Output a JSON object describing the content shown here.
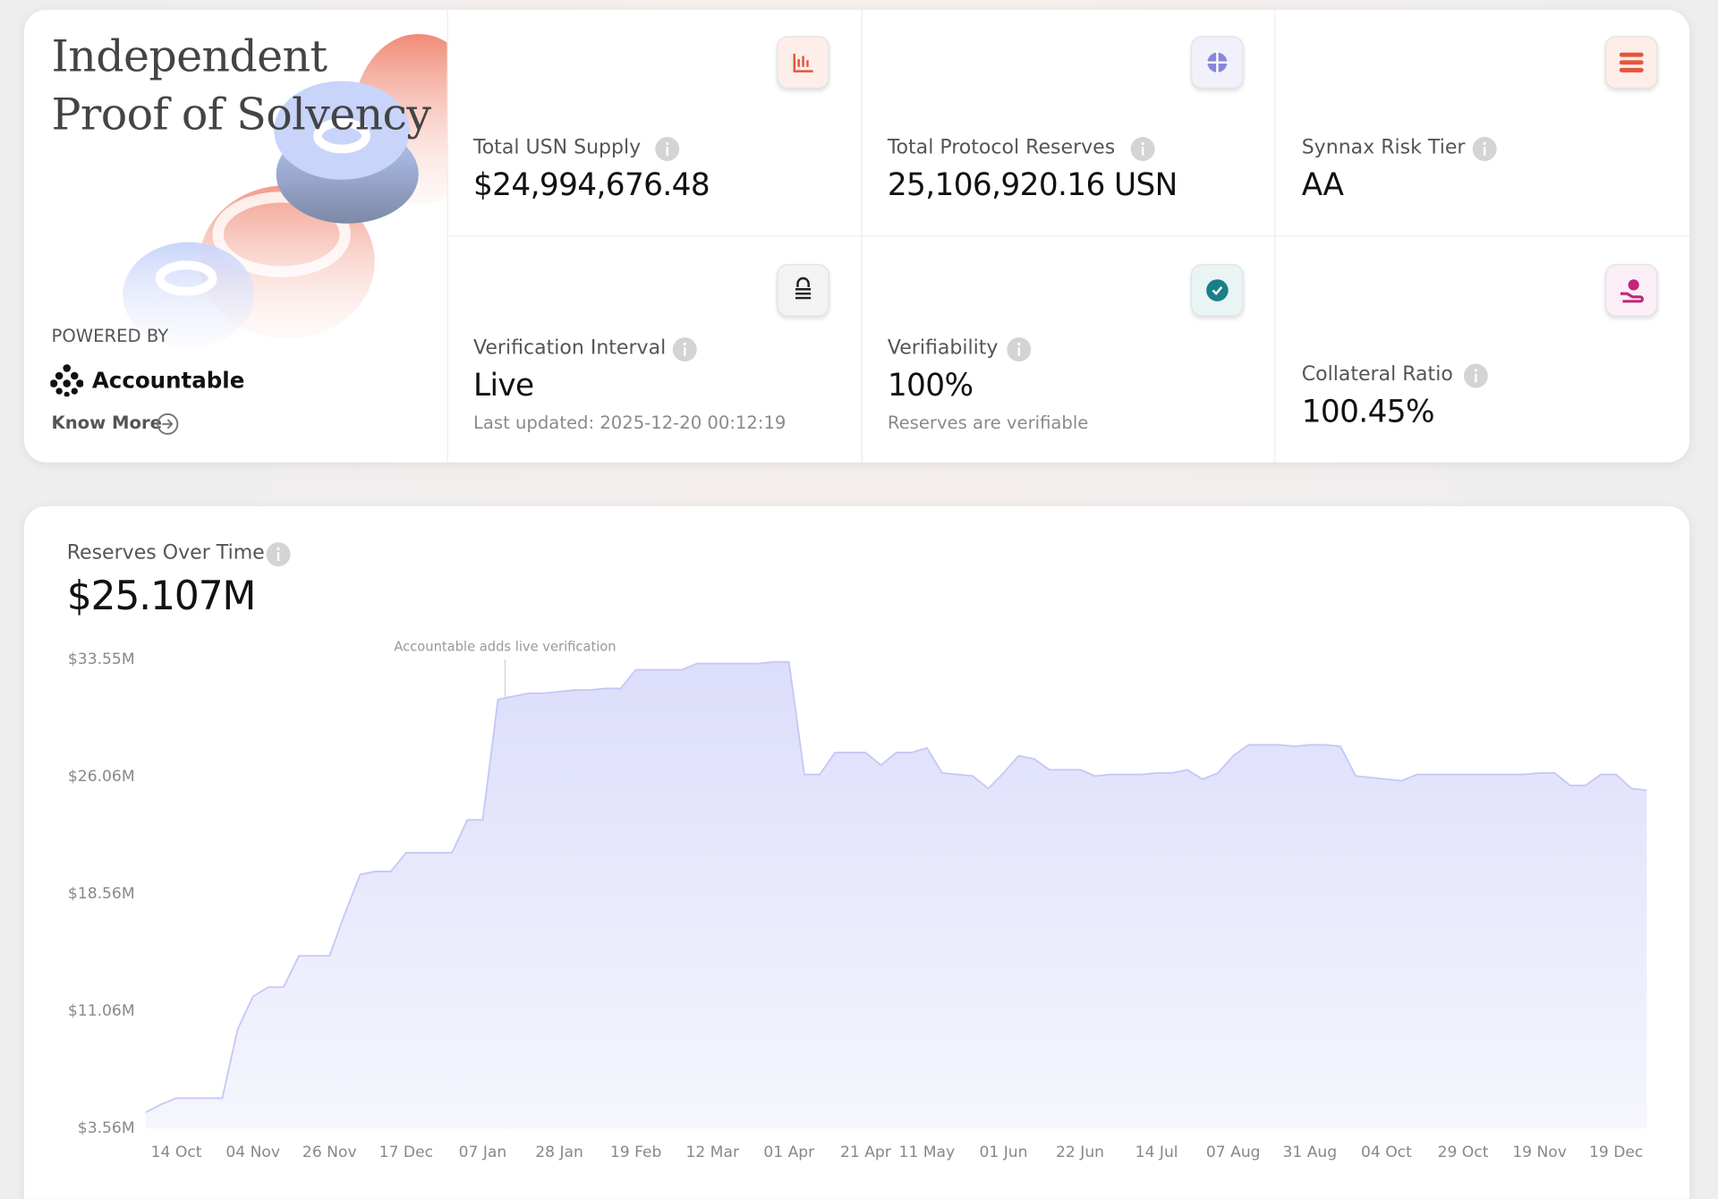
{
  "hero": {
    "title_lines": [
      "Independent",
      "Proof of Solvency"
    ],
    "powered_by": "POWERED BY",
    "brand": "Accountable",
    "link": "Know More"
  },
  "stats": [
    {
      "label": "Total USN Supply",
      "value": "$24,994,676.48"
    },
    {
      "label": "Total Protocol Reserves",
      "value": "25,106,920.16 USN"
    },
    {
      "label": "Synnax Risk Tier",
      "value": "AA"
    },
    {
      "label": "Verification Interval",
      "value": "Live",
      "note": "Last updated: 2025-12-20 00:12:19"
    },
    {
      "label": "Verifiability",
      "value": "100%",
      "note": "Reserves are verifiable"
    },
    {
      "label": "Collateral Ratio",
      "value": "100.45%"
    }
  ],
  "chart_data": {
    "type": "area",
    "title": "Reserves Over Time",
    "headline": "$25.107M",
    "annotation": "Accountable adds live verification",
    "color": "#c5c8f6",
    "ylim": [
      3560000,
      33550000
    ],
    "yticks": [
      {
        "value": 3560000,
        "label": "$3.56M"
      },
      {
        "value": 11060000,
        "label": "$11.06M"
      },
      {
        "value": 18560000,
        "label": "$18.56M"
      },
      {
        "value": 26060000,
        "label": "$26.06M"
      },
      {
        "value": 33550000,
        "label": "$33.55M"
      }
    ],
    "categories": [
      null,
      null,
      "14 Oct",
      null,
      null,
      null,
      null,
      "04 Nov",
      null,
      null,
      null,
      null,
      "26 Nov",
      null,
      null,
      null,
      null,
      "17 Dec",
      null,
      null,
      null,
      null,
      "07 Jan",
      null,
      null,
      null,
      null,
      "28 Jan",
      null,
      null,
      null,
      null,
      "19 Feb",
      null,
      null,
      null,
      null,
      "12 Mar",
      null,
      null,
      null,
      null,
      "01 Apr",
      null,
      null,
      null,
      null,
      "21 Apr",
      null,
      null,
      null,
      "11 May",
      null,
      null,
      null,
      null,
      "01 Jun",
      null,
      null,
      null,
      null,
      "22 Jun",
      null,
      null,
      null,
      null,
      "14 Jul",
      null,
      null,
      null,
      null,
      "07 Aug",
      null,
      null,
      null,
      null,
      "31 Aug",
      null,
      null,
      null,
      null,
      "04 Oct",
      null,
      null,
      null,
      null,
      "29 Oct",
      null,
      null,
      null,
      null,
      "19 Nov",
      null,
      null,
      null,
      null,
      "19 Dec",
      null,
      null
    ],
    "values": [
      4600000,
      5100000,
      5500000,
      5500000,
      5500000,
      5500000,
      9900000,
      12000000,
      12600000,
      12600000,
      14600000,
      14600000,
      14600000,
      17300000,
      19800000,
      20000000,
      20000000,
      21200000,
      21200000,
      21200000,
      21200000,
      23300000,
      23300000,
      31000000,
      31200000,
      31400000,
      31400000,
      31500000,
      31600000,
      31600000,
      31700000,
      31700000,
      32900000,
      32900000,
      32900000,
      32900000,
      33300000,
      33300000,
      33300000,
      33300000,
      33300000,
      33400000,
      33400000,
      26200000,
      26200000,
      27600000,
      27600000,
      27600000,
      26800000,
      27600000,
      27600000,
      27900000,
      26300000,
      26200000,
      26100000,
      25300000,
      26300000,
      27400000,
      27200000,
      26500000,
      26500000,
      26500000,
      26100000,
      26200000,
      26200000,
      26200000,
      26300000,
      26300000,
      26500000,
      25900000,
      26300000,
      27400000,
      28100000,
      28100000,
      28100000,
      28000000,
      28100000,
      28100000,
      28000000,
      26100000,
      26000000,
      25900000,
      25800000,
      26200000,
      26200000,
      26200000,
      26200000,
      26200000,
      26200000,
      26200000,
      26200000,
      26300000,
      26300000,
      25500000,
      25500000,
      26200000,
      26200000,
      25300000,
      25200000
    ]
  }
}
